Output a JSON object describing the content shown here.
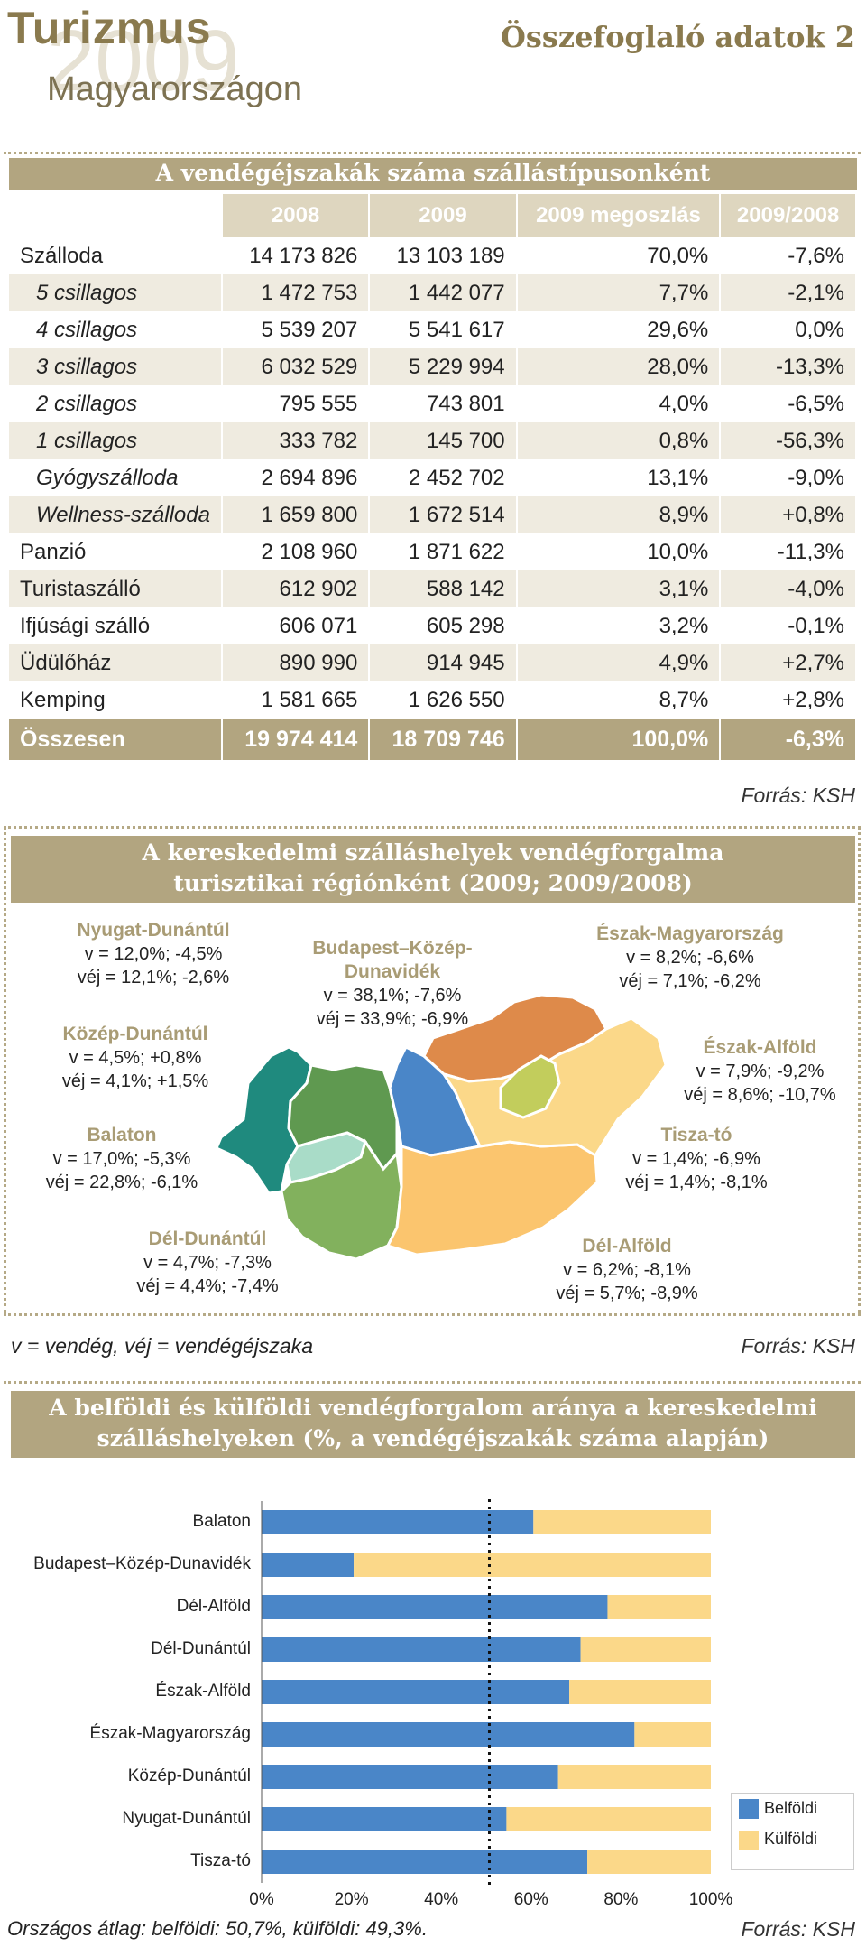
{
  "header": {
    "title": "Turizmus",
    "year": "2009",
    "subtitle": "Magyarországon",
    "right_title": "Összefoglaló adatok 2"
  },
  "table1": {
    "title": "A vendégéjszakák száma szállástípusonként",
    "columns": [
      "",
      "2008",
      "2009",
      "2009 megoszlás",
      "2009/2008"
    ],
    "rows": [
      {
        "label": "Szálloda",
        "v2008": "14 173 826",
        "v2009": "13 103 189",
        "share": "70,0%",
        "change": "-7,6%",
        "sub": false
      },
      {
        "label": "5 csillagos",
        "v2008": "1 472 753",
        "v2009": "1 442 077",
        "share": "7,7%",
        "change": "-2,1%",
        "sub": true
      },
      {
        "label": "4 csillagos",
        "v2008": "5 539 207",
        "v2009": "5 541 617",
        "share": "29,6%",
        "change": "0,0%",
        "sub": true
      },
      {
        "label": "3 csillagos",
        "v2008": "6 032 529",
        "v2009": "5 229 994",
        "share": "28,0%",
        "change": "-13,3%",
        "sub": true
      },
      {
        "label": "2 csillagos",
        "v2008": "795 555",
        "v2009": "743 801",
        "share": "4,0%",
        "change": "-6,5%",
        "sub": true
      },
      {
        "label": "1 csillagos",
        "v2008": "333 782",
        "v2009": "145 700",
        "share": "0,8%",
        "change": "-56,3%",
        "sub": true
      },
      {
        "label": "Gyógyszálloda",
        "v2008": "2 694 896",
        "v2009": "2 452 702",
        "share": "13,1%",
        "change": "-9,0%",
        "sub": true
      },
      {
        "label": "Wellness-szálloda",
        "v2008": "1 659 800",
        "v2009": "1 672 514",
        "share": "8,9%",
        "change": "+0,8%",
        "sub": true
      },
      {
        "label": "Panzió",
        "v2008": "2 108 960",
        "v2009": "1 871 622",
        "share": "10,0%",
        "change": "-11,3%",
        "sub": false
      },
      {
        "label": "Turistaszálló",
        "v2008": "612 902",
        "v2009": "588 142",
        "share": "3,1%",
        "change": "-4,0%",
        "sub": false
      },
      {
        "label": "Ifjúsági szálló",
        "v2008": "606 071",
        "v2009": "605 298",
        "share": "3,2%",
        "change": "-0,1%",
        "sub": false
      },
      {
        "label": "Üdülőház",
        "v2008": "890 990",
        "v2009": "914 945",
        "share": "4,9%",
        "change": "+2,7%",
        "sub": false
      },
      {
        "label": "Kemping",
        "v2008": "1 581 665",
        "v2009": "1 626 550",
        "share": "8,7%",
        "change": "+2,8%",
        "sub": false
      }
    ],
    "total": {
      "label": "Összesen",
      "v2008": "19 974 414",
      "v2009": "18 709 746",
      "share": "100,0%",
      "change": "-6,3%"
    },
    "source": "Forrás: KSH"
  },
  "map": {
    "title_line1": "A kereskedelmi szálláshelyek vendégforgalma",
    "title_line2": "turisztikai régiónként (2009; 2009/2008)",
    "regions": [
      {
        "name": "Nyugat-Dunántúl",
        "v": "v = 12,0%; -4,5%",
        "vej": "véj = 12,1%; -2,6%",
        "color": "#1f8a7e"
      },
      {
        "name": "Budapest–Közép-Dunavidék",
        "v": "v = 38,1%; -7,6%",
        "vej": "véj = 33,9%; -6,9%",
        "color": "#4a86c8"
      },
      {
        "name": "Észak-Magyarország",
        "v": "v = 8,2%; -6,6%",
        "vej": "véj = 7,1%; -6,2%",
        "color": "#de8a4a"
      },
      {
        "name": "Közép-Dunántúl",
        "v": "v = 4,5%; +0,8%",
        "vej": "véj = 4,1%; +1,5%",
        "color": "#5f9950"
      },
      {
        "name": "Észak-Alföld",
        "v": "v = 7,9%; -9,2%",
        "vej": "véj = 8,6%; -10,7%",
        "color": "#fbd889"
      },
      {
        "name": "Balaton",
        "v": "v = 17,0%; -5,3%",
        "vej": "véj = 22,8%; -6,1%",
        "color": "#a9dcc8"
      },
      {
        "name": "Tisza-tó",
        "v": "v = 1,4%; -6,9%",
        "vej": "véj = 1,4%; -8,1%",
        "color": "#c2cd5c"
      },
      {
        "name": "Dél-Dunántúl",
        "v": "v = 4,7%; -7,3%",
        "vej": "véj = 4,4%; -7,4%",
        "color": "#82b15d"
      },
      {
        "name": "Dél-Alföld",
        "v": "v = 6,2%; -8,1%",
        "vej": "véj = 5,7%; -8,9%",
        "color": "#fbc56e"
      }
    ],
    "note": "v = vendég, véj = vendégéjszaka",
    "source": "Forrás: KSH"
  },
  "chart_data": {
    "type": "bar",
    "orientation": "horizontal",
    "stacked": true,
    "title": "A belföldi és külföldi vendégforgalom aránya a kereskedelmi szálláshelyeken (%, a vendégéjszakák száma alapján)",
    "title_line1": "A belföldi és külföldi vendégforgalom aránya a kereskedelmi",
    "title_line2": "szálláshelyeken (%, a vendégéjszakák száma alapján)",
    "categories": [
      "Balaton",
      "Budapest–Közép-Dunavidék",
      "Dél-Alföld",
      "Dél-Dunántúl",
      "Észak-Alföld",
      "Észak-Magyarország",
      "Közép-Dunántúl",
      "Nyugat-Dunántúl",
      "Tisza-tó"
    ],
    "series": [
      {
        "name": "Belföldi",
        "color": "#4a86c8",
        "values": [
          60.5,
          20.5,
          77.0,
          71.0,
          68.5,
          83.0,
          66.0,
          54.5,
          72.5
        ]
      },
      {
        "name": "Külföldi",
        "color": "#fbd889",
        "values": [
          39.5,
          79.5,
          23.0,
          29.0,
          31.5,
          17.0,
          34.0,
          45.5,
          27.5
        ]
      }
    ],
    "xlim": [
      0,
      100
    ],
    "xticks": [
      "0%",
      "20%",
      "40%",
      "60%",
      "80%",
      "100%"
    ],
    "reference_line": 50.7,
    "legend_position": "bottom-right",
    "note": "Országos átlag: belföldi: 50,7%, külföldi: 49,3%.",
    "source": "Forrás: KSH"
  }
}
